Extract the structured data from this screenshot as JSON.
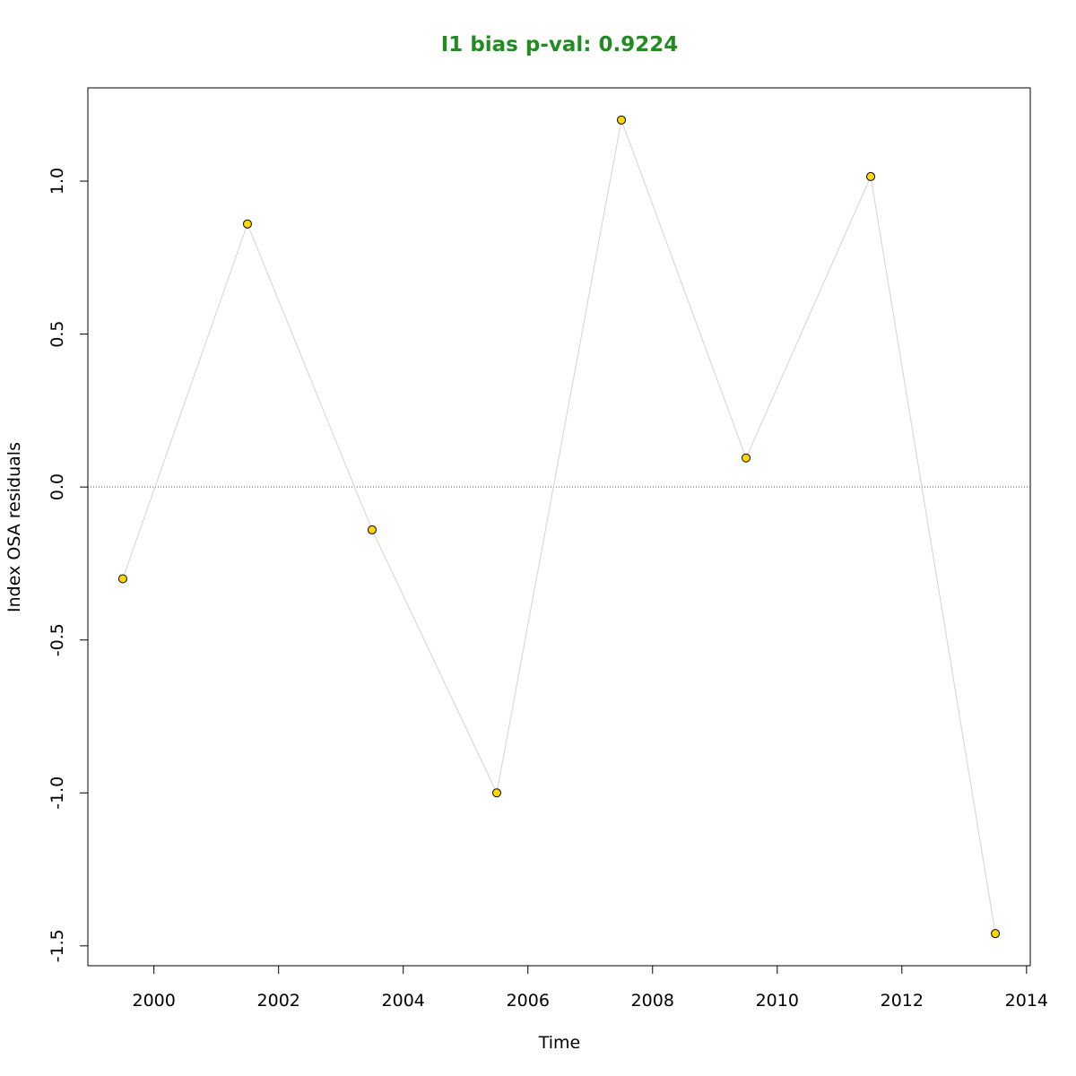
{
  "chart_data": {
    "type": "line",
    "title": "I1 bias p-val: 0.9224",
    "xlabel": "Time",
    "ylabel": "Index OSA residuals",
    "xlim": [
      1998.94,
      2014.06
    ],
    "ylim": [
      -1.565,
      1.305
    ],
    "x_ticks": [
      2000,
      2002,
      2004,
      2006,
      2008,
      2010,
      2012,
      2014
    ],
    "x_tick_labels": [
      "2000",
      "2002",
      "2004",
      "2006",
      "2008",
      "2010",
      "2012",
      "2014"
    ],
    "y_ticks": [
      -1.5,
      -1.0,
      -0.5,
      0.0,
      0.5,
      1.0
    ],
    "y_tick_labels": [
      "-1.5",
      "-1.0",
      "-0.5",
      "0.0",
      "0.5",
      "1.0"
    ],
    "reference_line": 0.0,
    "grid": false,
    "series": [
      {
        "x": [
          1999.5,
          2001.5,
          2003.5,
          2005.5,
          2007.5,
          2009.5,
          2011.5,
          2013.5
        ],
        "y": [
          -0.3,
          0.86,
          -0.14,
          -1.0,
          1.2,
          0.095,
          1.015,
          -1.46
        ]
      }
    ],
    "colors": {
      "title": "#228B22",
      "point_fill": "#FFD700",
      "point_stroke": "#000000",
      "connector": "#D3D3D3",
      "reference": "#555555"
    }
  }
}
